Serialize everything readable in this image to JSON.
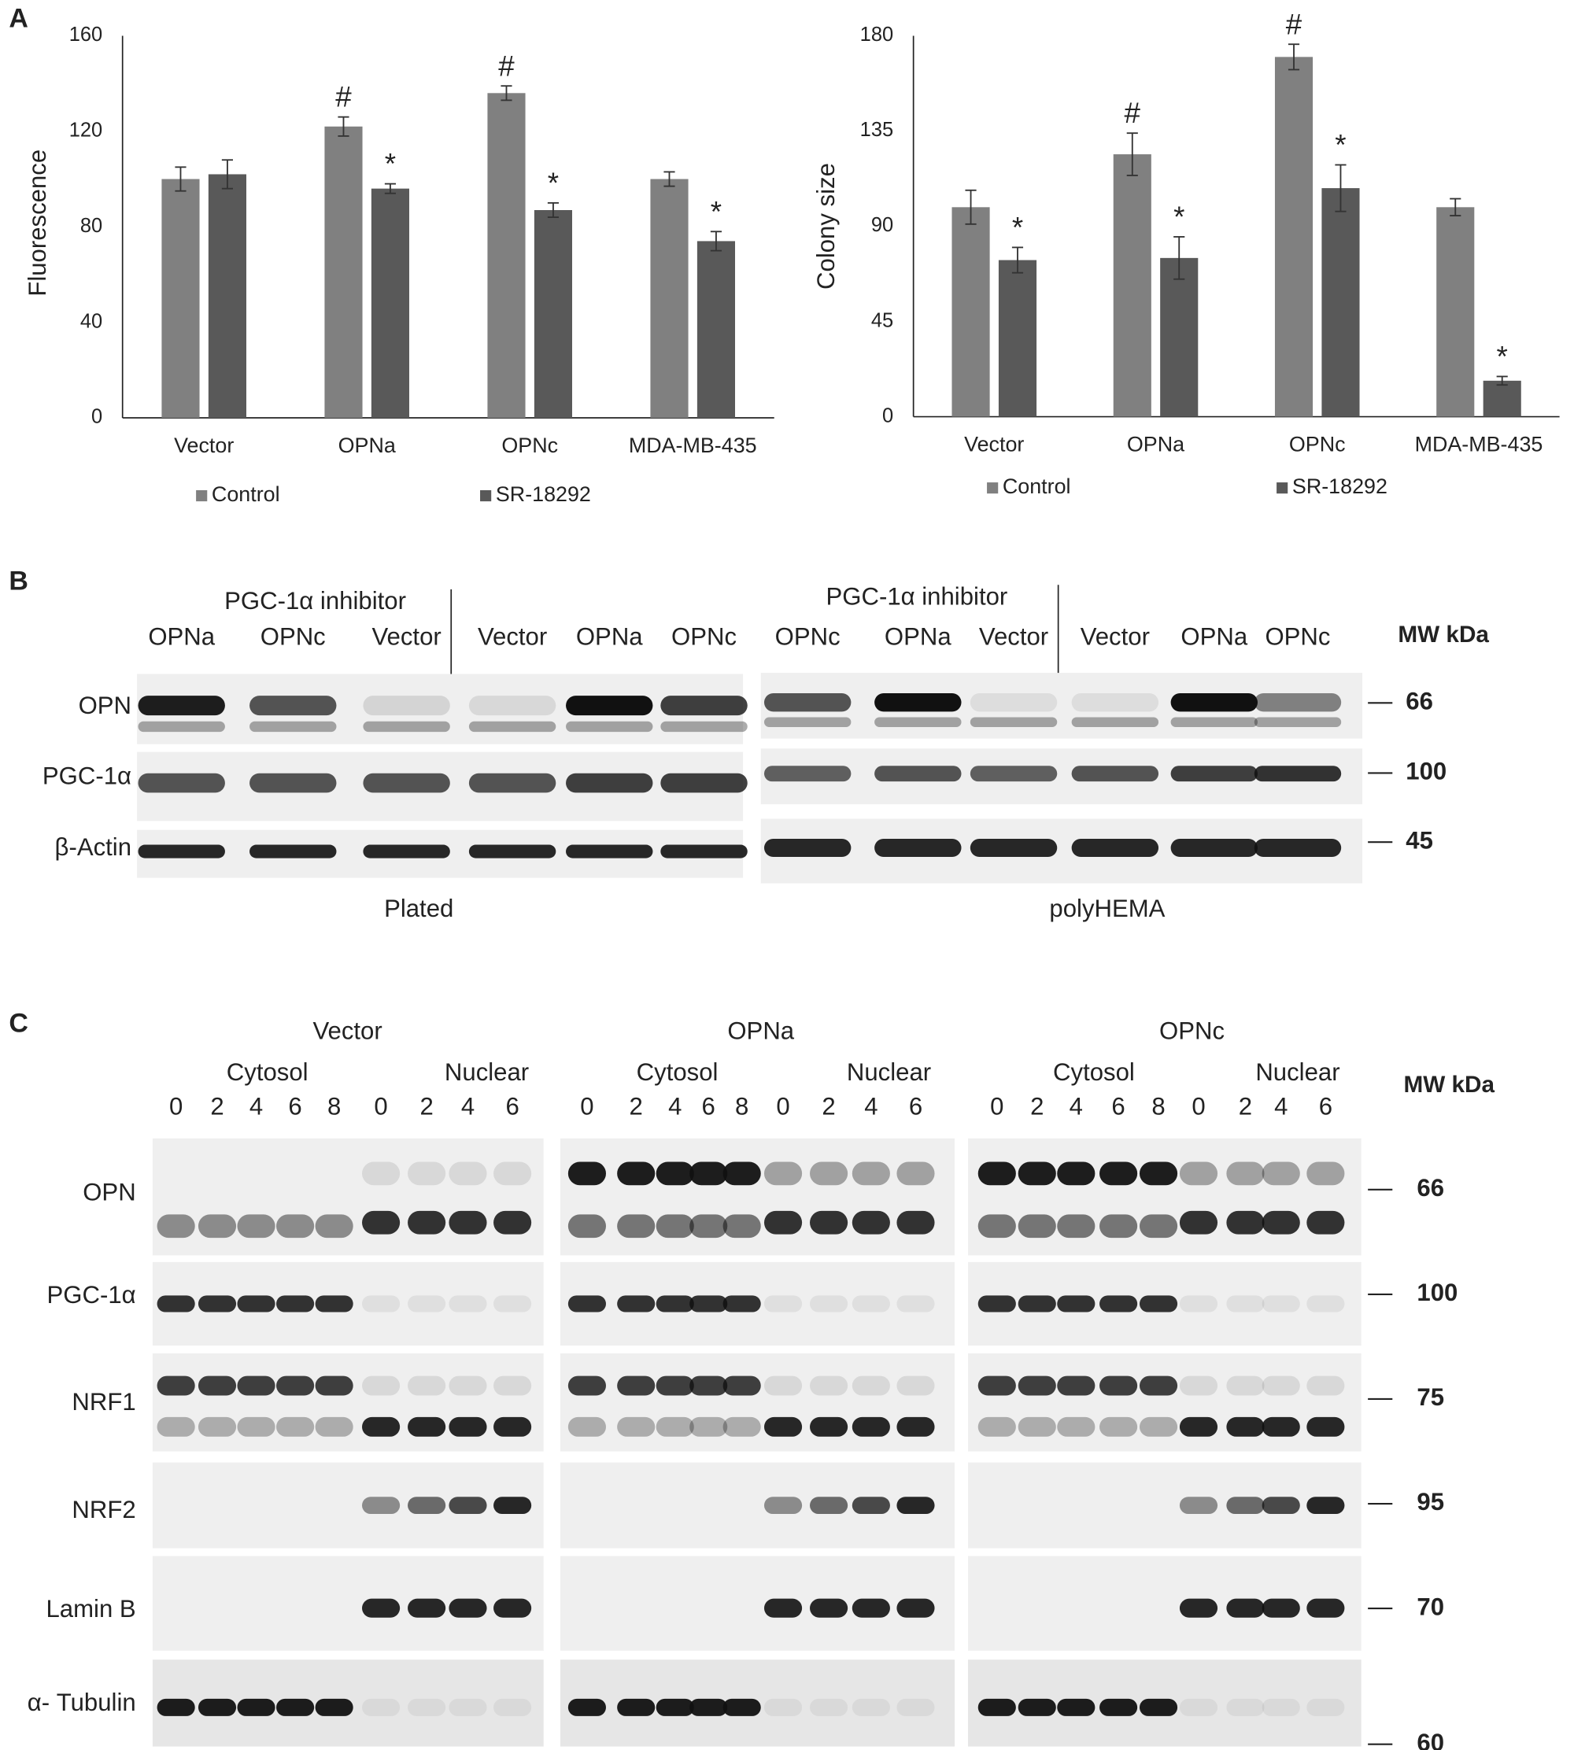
{
  "chart_data": [
    {
      "type": "bar",
      "y_label": "Fluorescence",
      "categories": [
        "Vector",
        "OPNa",
        "OPNc",
        "MDA-MB-435"
      ],
      "series": [
        {
          "name": "Control",
          "color": "#808080",
          "values": [
            100,
            122,
            136,
            100
          ],
          "errors": [
            5,
            4,
            3,
            3
          ],
          "value_annotations": [
            null,
            "#",
            "#",
            null
          ]
        },
        {
          "name": "SR-18292",
          "color": "#595959",
          "values": [
            102,
            96,
            87,
            74
          ],
          "errors": [
            6,
            2,
            3,
            4
          ],
          "value_annotations": [
            null,
            "*",
            "*",
            "*"
          ]
        }
      ],
      "ylim": [
        0,
        160
      ],
      "yticks": [
        0,
        40,
        80,
        120,
        160
      ],
      "grid": false
    },
    {
      "type": "bar",
      "y_label": "Colony size",
      "categories": [
        "Vector",
        "OPNa",
        "OPNc",
        "MDA-MB-435"
      ],
      "series": [
        {
          "name": "Control",
          "color": "#808080",
          "values": [
            99,
            124,
            170,
            99
          ],
          "errors": [
            8,
            10,
            6,
            4
          ],
          "value_annotations": [
            null,
            "#",
            "#",
            null
          ]
        },
        {
          "name": "SR-18292",
          "color": "#595959",
          "values": [
            74,
            75,
            108,
            17
          ],
          "errors": [
            6,
            10,
            11,
            2
          ],
          "value_annotations": [
            "*",
            "*",
            "*",
            "*"
          ]
        }
      ],
      "ylim": [
        0,
        180
      ],
      "yticks": [
        0,
        45,
        90,
        135,
        180
      ],
      "grid": false
    }
  ],
  "panel_labels": [
    "A",
    "B",
    "C"
  ],
  "blot_b": {
    "panels": [
      {
        "inhibitor": "PGC-1α inhibitor",
        "inhibitor_lanes": [
          "OPNa",
          "OPNc",
          "Vector"
        ],
        "lanes": [
          "Vector",
          "OPNa",
          "OPNc"
        ],
        "caption": "Plated"
      },
      {
        "inhibitor": "PGC-1α inhibitor",
        "inhibitor_lanes": [
          "OPNc",
          "OPNa",
          "Vector"
        ],
        "lanes": [
          "Vector",
          "OPNa",
          "OPNc"
        ],
        "caption": "polyHEMA"
      }
    ],
    "rows": [
      "OPN",
      "PGC-1α",
      "β-Actin"
    ],
    "mw_title": "MW kDa",
    "mw": [
      66,
      100,
      45
    ]
  },
  "blot_c": {
    "groups": [
      {
        "title": "Vector",
        "fractions": [
          {
            "name": "Cytosol",
            "lanes": [
              0,
              2,
              4,
              6,
              8
            ]
          },
          {
            "name": "Nuclear",
            "lanes": [
              0,
              2,
              4,
              6
            ]
          }
        ]
      },
      {
        "title": "OPNa",
        "fractions": [
          {
            "name": "Cytosol",
            "lanes": [
              0,
              2,
              4,
              6,
              8
            ]
          },
          {
            "name": "Nuclear",
            "lanes": [
              0,
              2,
              4,
              6
            ]
          }
        ]
      },
      {
        "title": "OPNc",
        "fractions": [
          {
            "name": "Cytosol",
            "lanes": [
              0,
              2,
              4,
              6,
              8
            ]
          },
          {
            "name": "Nuclear",
            "lanes": [
              0,
              2,
              4,
              6
            ]
          }
        ]
      }
    ],
    "rows": [
      "OPN",
      "PGC-1α",
      "NRF1",
      "NRF2",
      "Lamin B",
      "α- Tubulin"
    ],
    "mw_title": "MW kDa",
    "mw": [
      66,
      100,
      75,
      95,
      70,
      60
    ]
  }
}
